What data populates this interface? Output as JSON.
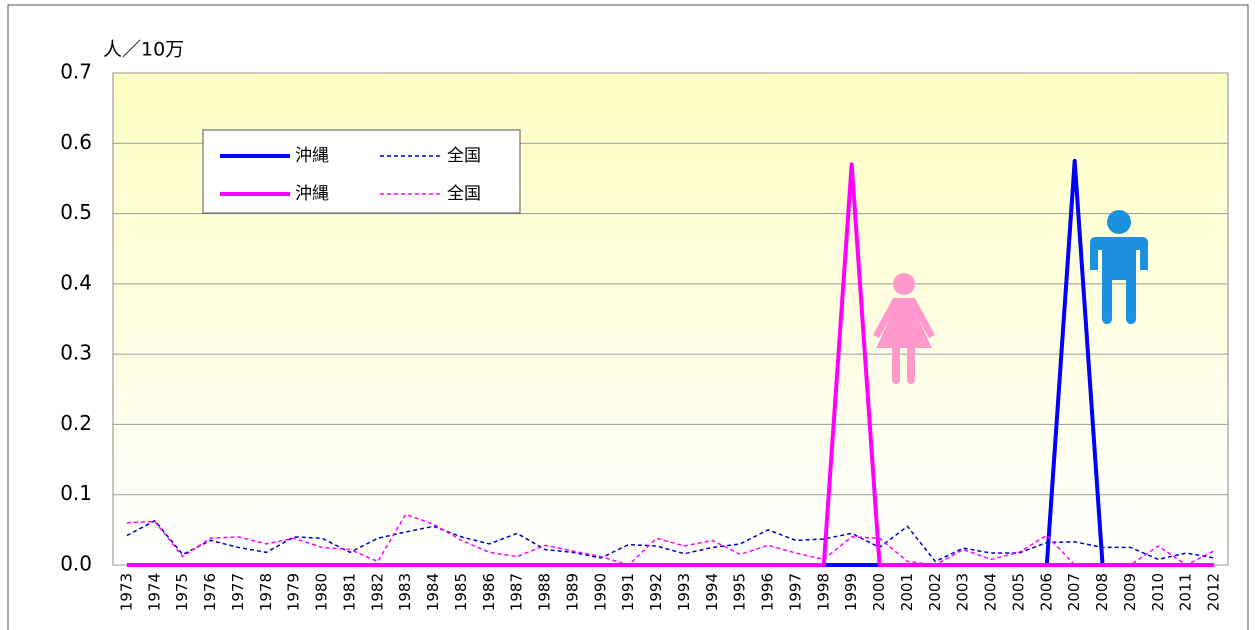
{
  "chart_data": {
    "type": "line",
    "ylabel": "人／10万",
    "categories": [
      "1973",
      "1974",
      "1975",
      "1976",
      "1977",
      "1978",
      "1979",
      "1980",
      "1981",
      "1982",
      "1983",
      "1984",
      "1985",
      "1986",
      "1987",
      "1988",
      "1989",
      "1990",
      "1991",
      "1992",
      "1993",
      "1994",
      "1995",
      "1996",
      "1997",
      "1998",
      "1999",
      "2000",
      "2001",
      "2002",
      "2003",
      "2004",
      "2005",
      "2006",
      "2007",
      "2008",
      "2009",
      "2010",
      "2011",
      "2012"
    ],
    "series": [
      {
        "name": "沖縄",
        "color": "#0000ff",
        "dashed": false,
        "values": [
          0,
          0,
          0,
          0,
          0,
          0,
          0,
          0,
          0,
          0,
          0,
          0,
          0,
          0,
          0,
          0,
          0,
          0,
          0,
          0,
          0,
          0,
          0,
          0,
          0,
          0,
          0,
          0,
          0,
          0,
          0,
          0,
          0,
          0,
          0.575,
          0,
          0,
          0,
          0,
          0
        ]
      },
      {
        "name": "全国",
        "color": "#0000cc",
        "dashed": true,
        "values": [
          0.042,
          0.063,
          0.015,
          0.035,
          0.025,
          0.018,
          0.04,
          0.038,
          0.018,
          0.038,
          0.047,
          0.055,
          0.04,
          0.03,
          0.045,
          0.022,
          0.018,
          0.01,
          0.029,
          0.027,
          0.016,
          0.025,
          0.03,
          0.05,
          0.035,
          0.037,
          0.045,
          0.025,
          0.055,
          0.005,
          0.024,
          0.017,
          0.017,
          0.032,
          0.033,
          0.025,
          0.025,
          0.008,
          0.017,
          0.01
        ]
      },
      {
        "name": "沖縄",
        "color": "#ff00ff",
        "dashed": false,
        "values": [
          0,
          0,
          0,
          0,
          0,
          0,
          0,
          0,
          0,
          0,
          0,
          0,
          0,
          0,
          0,
          0,
          0,
          0,
          0,
          0,
          0,
          0,
          0,
          0,
          0,
          0,
          0.57,
          0,
          0,
          0,
          0,
          0,
          0,
          0,
          0,
          0,
          0,
          0,
          0,
          0
        ]
      },
      {
        "name": "全国",
        "color": "#ff00ff",
        "dashed": true,
        "values": [
          0.06,
          0.062,
          0.012,
          0.038,
          0.04,
          0.03,
          0.038,
          0.025,
          0.022,
          0.005,
          0.072,
          0.058,
          0.035,
          0.018,
          0.012,
          0.028,
          0.02,
          0.012,
          0.0,
          0.038,
          0.027,
          0.035,
          0.015,
          0.028,
          0.017,
          0.008,
          0.04,
          0.038,
          0.005,
          0.0,
          0.022,
          0.008,
          0.018,
          0.042,
          0.0,
          0.0,
          0.0,
          0.027,
          0.0,
          0.02
        ]
      }
    ],
    "ylim": [
      0,
      0.7
    ],
    "yticks": [
      {
        "value": 0,
        "label": "0.0"
      },
      0.1,
      0.2,
      0.3,
      0.4,
      0.5,
      0.6,
      0.7
    ],
    "grid": true
  }
}
